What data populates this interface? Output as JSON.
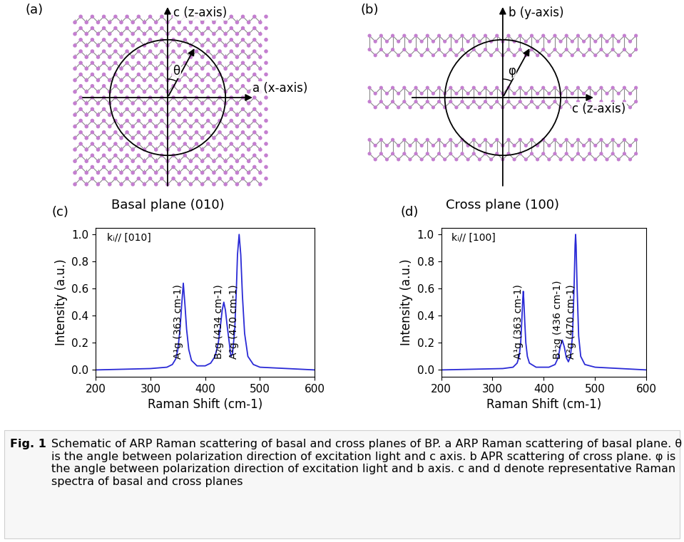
{
  "diagrams": [
    {
      "label": "(a)",
      "kind": "basal",
      "vertical_axis": "c (z-axis)",
      "horizontal_axis": "a (x-axis)",
      "angle": "θ",
      "plane": "Basal plane (010)"
    },
    {
      "label": "(b)",
      "kind": "cross",
      "vertical_axis": "b (y-axis)",
      "horizontal_axis": "c (z-axis)",
      "angle": "φ",
      "plane": "Cross plane (100)"
    }
  ],
  "chart_data": [
    {
      "type": "line",
      "title": "(c)",
      "x_label": "Raman Shift (cm-1)",
      "y_label": "Intensity (a.u.)",
      "color": "#2a2ad6",
      "x": [
        200,
        300,
        330,
        340,
        346,
        350,
        354,
        357,
        360,
        363,
        366,
        370,
        375,
        385,
        400,
        410,
        418,
        424,
        428,
        431,
        434,
        437,
        440,
        444,
        447,
        450,
        454,
        457,
        459,
        462,
        465,
        468,
        472,
        478,
        488,
        500,
        550,
        600
      ],
      "values": [
        0.0,
        0.01,
        0.02,
        0.04,
        0.08,
        0.15,
        0.3,
        0.48,
        0.64,
        0.48,
        0.3,
        0.15,
        0.07,
        0.03,
        0.03,
        0.05,
        0.1,
        0.2,
        0.33,
        0.44,
        0.5,
        0.44,
        0.33,
        0.2,
        0.1,
        0.12,
        0.3,
        0.6,
        0.85,
        1.0,
        0.85,
        0.55,
        0.27,
        0.1,
        0.04,
        0.02,
        0.01,
        0.0
      ],
      "xlim": [
        200,
        600
      ],
      "ylim": [
        -0.05,
        1.05
      ],
      "xticks": [
        200,
        300,
        400,
        500,
        600
      ],
      "yticks": [
        {
          "value": 0.0,
          "label": "0.0"
        },
        {
          "value": 0.2,
          "label": "0.2"
        },
        {
          "value": 0.4,
          "label": "0.4"
        },
        {
          "value": 0.6,
          "label": "0.6"
        },
        {
          "value": 0.8,
          "label": "0.8"
        },
        {
          "value": 1.0,
          "label": "1.0"
        }
      ],
      "annotations": [
        {
          "text": "kᵢ// [010]"
        },
        {
          "text": "A¹g (363 cm-1)",
          "x": 360
        },
        {
          "text": "B₂g (434 cm-1)",
          "x": 434
        },
        {
          "text": "A²g (470 cm-1)",
          "x": 462
        }
      ]
    },
    {
      "type": "line",
      "title": "(d)",
      "x_label": "Raman Shift (cm-1)",
      "y_label": "Intensity (a.u.)",
      "color": "#2a2ad6",
      "x": [
        200,
        320,
        340,
        348,
        352,
        355,
        357,
        359,
        360,
        361,
        363,
        365,
        368,
        372,
        385,
        410,
        422,
        428,
        432,
        436,
        440,
        444,
        448,
        452,
        456,
        459,
        461,
        462,
        463,
        465,
        468,
        472,
        480,
        500,
        550,
        600
      ],
      "values": [
        0.0,
        0.01,
        0.02,
        0.05,
        0.1,
        0.2,
        0.35,
        0.52,
        0.58,
        0.52,
        0.35,
        0.2,
        0.1,
        0.05,
        0.02,
        0.02,
        0.04,
        0.09,
        0.17,
        0.22,
        0.17,
        0.09,
        0.06,
        0.1,
        0.25,
        0.6,
        0.92,
        1.0,
        0.92,
        0.6,
        0.25,
        0.1,
        0.04,
        0.02,
        0.01,
        0.0
      ],
      "xlim": [
        200,
        600
      ],
      "ylim": [
        -0.05,
        1.05
      ],
      "xticks": [
        200,
        300,
        400,
        500,
        600
      ],
      "yticks": [
        {
          "value": 0.0,
          "label": "0.0"
        },
        {
          "value": 0.2,
          "label": "0.2"
        },
        {
          "value": 0.4,
          "label": "0.4"
        },
        {
          "value": 0.6,
          "label": "0.6"
        },
        {
          "value": 0.8,
          "label": "0.8"
        },
        {
          "value": 1.0,
          "label": "1.0"
        }
      ],
      "annotations": [
        {
          "text": "kᵢ// [100]"
        },
        {
          "text": "A¹g (363 cm-1)",
          "x": 360
        },
        {
          "text": "B¹₂g (436 cm-1)",
          "x": 436
        },
        {
          "text": "A²g (470 cm-1)",
          "x": 462
        }
      ]
    }
  ],
  "caption": {
    "label": "Fig. 1",
    "text": "Schematic of ARP Raman scattering of basal and cross planes of BP. a ARP Raman scattering of basal plane. θ is the angle between polarization direction of excitation light and c axis. b APR scattering of cross plane. φ is the angle between polarization direction of excitation light and b axis. c and d denote representative Raman spectra of basal and cross planes"
  }
}
